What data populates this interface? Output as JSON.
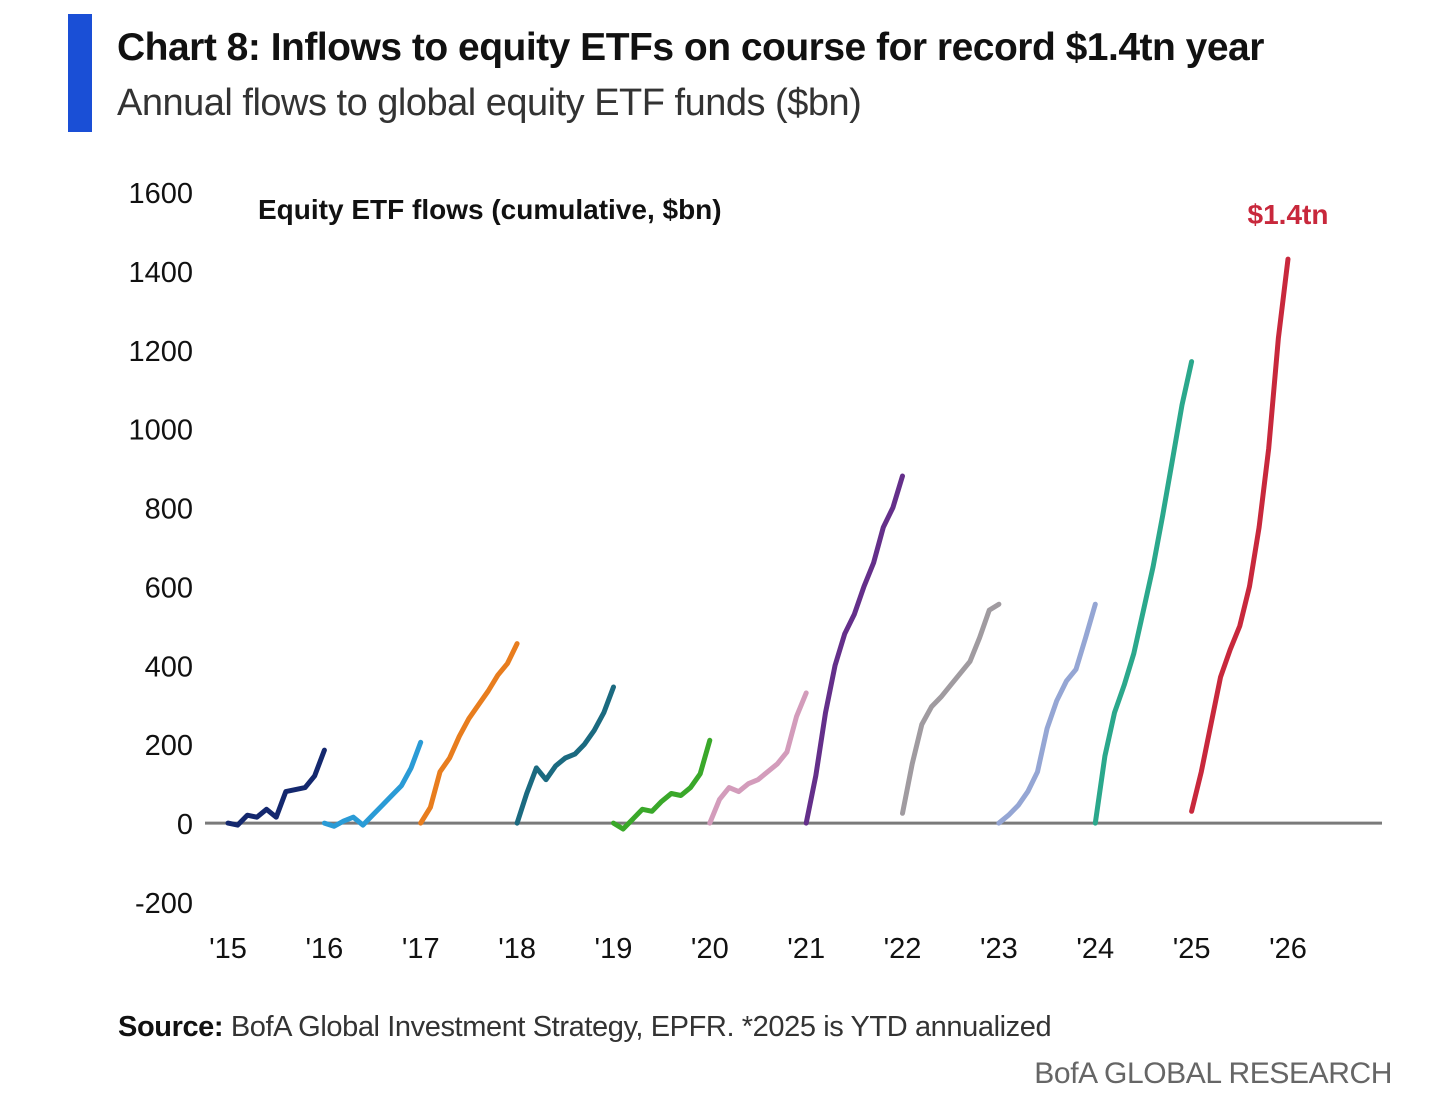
{
  "header": {
    "title": "Chart 8: Inflows to equity ETFs on course for record $1.4tn year",
    "subtitle": "Annual flows to global equity ETF funds ($bn)",
    "accent_color": "#1a4fd6"
  },
  "footer": {
    "source_label": "Source:",
    "source_text": " BofA Global Investment Strategy, EPFR. *2025 is YTD annualized",
    "brand": "BofA GLOBAL RESEARCH"
  },
  "chart_data": {
    "type": "line",
    "title": "",
    "inner_label": "Equity ETF flows (cumulative, $bn)",
    "xlabel": "",
    "ylabel": "",
    "x_ticks": [
      "'15",
      "'16",
      "'17",
      "'18",
      "'19",
      "'20",
      "'21",
      "'22",
      "'23",
      "'24",
      "'25",
      "'26"
    ],
    "xlim": [
      2015,
      2026
    ],
    "ylim": [
      -200,
      1600
    ],
    "y_ticks": [
      -200,
      0,
      200,
      400,
      600,
      800,
      1000,
      1200,
      1400,
      1600
    ],
    "grid": false,
    "legend": "none",
    "annotation": {
      "text": "$1.4tn",
      "color": "#c8283c"
    },
    "series": [
      {
        "year": 2015,
        "color": "#14286e",
        "points": [
          [
            2015.0,
            0
          ],
          [
            2015.1,
            -5
          ],
          [
            2015.2,
            20
          ],
          [
            2015.3,
            15
          ],
          [
            2015.4,
            35
          ],
          [
            2015.5,
            15
          ],
          [
            2015.6,
            80
          ],
          [
            2015.7,
            85
          ],
          [
            2015.8,
            90
          ],
          [
            2015.9,
            120
          ],
          [
            2016.0,
            185
          ]
        ]
      },
      {
        "year": 2016,
        "color": "#2a9bd6",
        "points": [
          [
            2016.0,
            0
          ],
          [
            2016.1,
            -8
          ],
          [
            2016.2,
            5
          ],
          [
            2016.3,
            15
          ],
          [
            2016.4,
            -5
          ],
          [
            2016.5,
            20
          ],
          [
            2016.6,
            45
          ],
          [
            2016.7,
            70
          ],
          [
            2016.8,
            95
          ],
          [
            2016.9,
            140
          ],
          [
            2017.0,
            205
          ]
        ]
      },
      {
        "year": 2017,
        "color": "#e87d1e",
        "points": [
          [
            2017.0,
            0
          ],
          [
            2017.1,
            40
          ],
          [
            2017.2,
            130
          ],
          [
            2017.3,
            165
          ],
          [
            2017.4,
            220
          ],
          [
            2017.5,
            265
          ],
          [
            2017.6,
            300
          ],
          [
            2017.7,
            335
          ],
          [
            2017.8,
            375
          ],
          [
            2017.9,
            405
          ],
          [
            2018.0,
            455
          ]
        ]
      },
      {
        "year": 2018,
        "color": "#1b6a80",
        "points": [
          [
            2018.0,
            0
          ],
          [
            2018.1,
            75
          ],
          [
            2018.2,
            140
          ],
          [
            2018.3,
            110
          ],
          [
            2018.4,
            145
          ],
          [
            2018.5,
            165
          ],
          [
            2018.6,
            175
          ],
          [
            2018.7,
            200
          ],
          [
            2018.8,
            235
          ],
          [
            2018.9,
            280
          ],
          [
            2019.0,
            345
          ]
        ]
      },
      {
        "year": 2019,
        "color": "#3aa82a",
        "points": [
          [
            2019.0,
            0
          ],
          [
            2019.1,
            -15
          ],
          [
            2019.2,
            10
          ],
          [
            2019.3,
            35
          ],
          [
            2019.4,
            30
          ],
          [
            2019.5,
            55
          ],
          [
            2019.6,
            75
          ],
          [
            2019.7,
            70
          ],
          [
            2019.8,
            90
          ],
          [
            2019.9,
            125
          ],
          [
            2020.0,
            210
          ]
        ]
      },
      {
        "year": 2020,
        "color": "#d39cbb",
        "points": [
          [
            2020.0,
            0
          ],
          [
            2020.1,
            60
          ],
          [
            2020.2,
            90
          ],
          [
            2020.3,
            80
          ],
          [
            2020.4,
            100
          ],
          [
            2020.5,
            110
          ],
          [
            2020.6,
            130
          ],
          [
            2020.7,
            150
          ],
          [
            2020.8,
            180
          ],
          [
            2020.9,
            270
          ],
          [
            2021.0,
            330
          ]
        ]
      },
      {
        "year": 2021,
        "color": "#642f8a",
        "points": [
          [
            2021.0,
            0
          ],
          [
            2021.1,
            120
          ],
          [
            2021.2,
            280
          ],
          [
            2021.3,
            400
          ],
          [
            2021.4,
            480
          ],
          [
            2021.5,
            530
          ],
          [
            2021.6,
            600
          ],
          [
            2021.7,
            660
          ],
          [
            2021.8,
            750
          ],
          [
            2021.9,
            800
          ],
          [
            2022.0,
            880
          ]
        ]
      },
      {
        "year": 2022,
        "color": "#a09ba0",
        "points": [
          [
            2022.0,
            25
          ],
          [
            2022.1,
            150
          ],
          [
            2022.2,
            250
          ],
          [
            2022.3,
            295
          ],
          [
            2022.4,
            320
          ],
          [
            2022.5,
            350
          ],
          [
            2022.6,
            380
          ],
          [
            2022.7,
            410
          ],
          [
            2022.8,
            470
          ],
          [
            2022.9,
            540
          ],
          [
            2023.0,
            555
          ]
        ]
      },
      {
        "year": 2023,
        "color": "#95a6d4",
        "points": [
          [
            2023.0,
            0
          ],
          [
            2023.1,
            20
          ],
          [
            2023.2,
            45
          ],
          [
            2023.3,
            80
          ],
          [
            2023.4,
            130
          ],
          [
            2023.5,
            240
          ],
          [
            2023.6,
            310
          ],
          [
            2023.7,
            360
          ],
          [
            2023.8,
            390
          ],
          [
            2023.9,
            470
          ],
          [
            2024.0,
            555
          ]
        ]
      },
      {
        "year": 2024,
        "color": "#2ba88c",
        "points": [
          [
            2024.0,
            0
          ],
          [
            2024.1,
            170
          ],
          [
            2024.2,
            280
          ],
          [
            2024.3,
            350
          ],
          [
            2024.4,
            430
          ],
          [
            2024.5,
            540
          ],
          [
            2024.6,
            650
          ],
          [
            2024.7,
            780
          ],
          [
            2024.8,
            920
          ],
          [
            2024.9,
            1060
          ],
          [
            2025.0,
            1170
          ]
        ]
      },
      {
        "year": 2025,
        "color": "#c8283c",
        "points": [
          [
            2025.0,
            30
          ],
          [
            2025.1,
            130
          ],
          [
            2025.2,
            250
          ],
          [
            2025.3,
            370
          ],
          [
            2025.4,
            440
          ],
          [
            2025.5,
            500
          ],
          [
            2025.6,
            600
          ],
          [
            2025.7,
            750
          ],
          [
            2025.8,
            950
          ],
          [
            2025.9,
            1230
          ],
          [
            2026.0,
            1430
          ]
        ]
      }
    ]
  }
}
